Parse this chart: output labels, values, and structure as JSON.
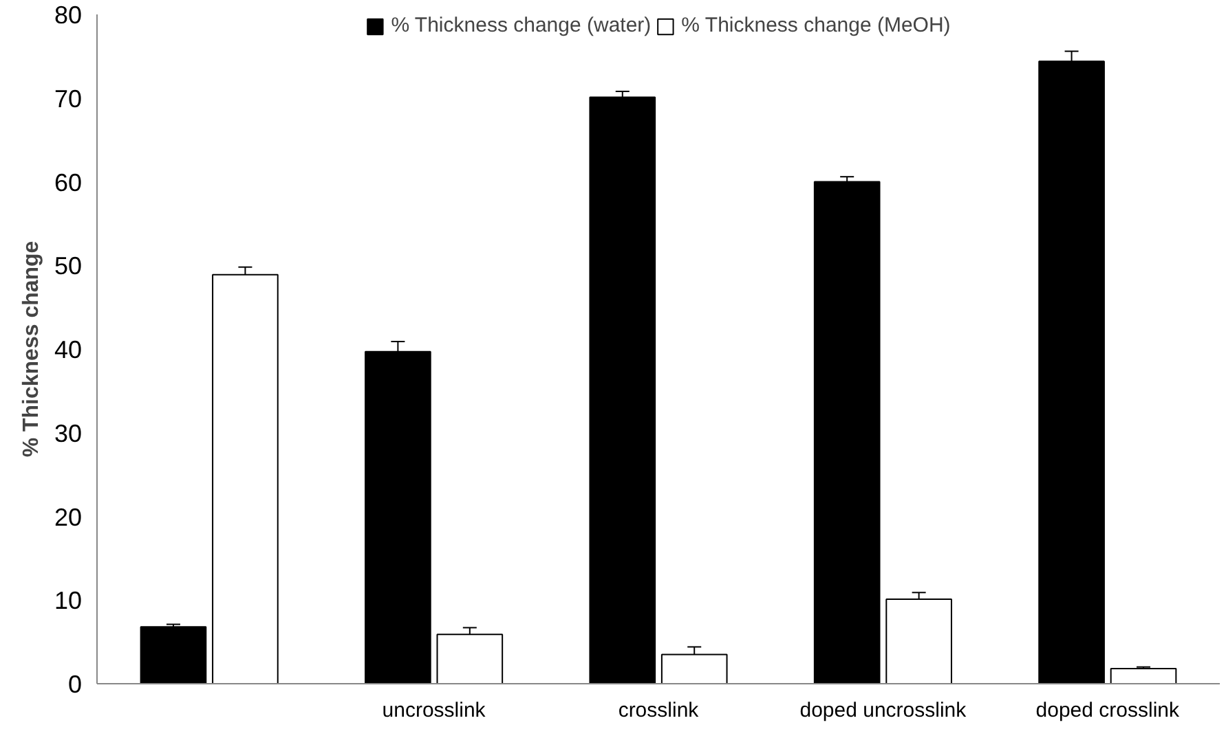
{
  "chart_data": {
    "type": "bar",
    "ylabel": "% Thickness change",
    "categories": [
      null,
      "uncrosslink",
      "crosslink",
      "doped uncrosslink",
      "doped crosslink"
    ],
    "series": [
      {
        "name": "% Thickness change (water)",
        "color": "#000000",
        "values": [
          6.8,
          39.7,
          70.1,
          60.0,
          74.4
        ],
        "errors": [
          0.3,
          1.2,
          0.7,
          0.6,
          1.2
        ]
      },
      {
        "name": "% Thickness change (MeOH)",
        "color": "#ffffff",
        "values": [
          48.9,
          5.9,
          3.5,
          10.1,
          1.8
        ],
        "errors": [
          0.9,
          0.8,
          0.9,
          0.8,
          0.2
        ]
      }
    ],
    "ylim": [
      0,
      80
    ],
    "yticks": [
      0,
      10,
      20,
      30,
      40,
      50,
      60,
      70,
      80
    ],
    "grid": false,
    "legend": "top"
  }
}
